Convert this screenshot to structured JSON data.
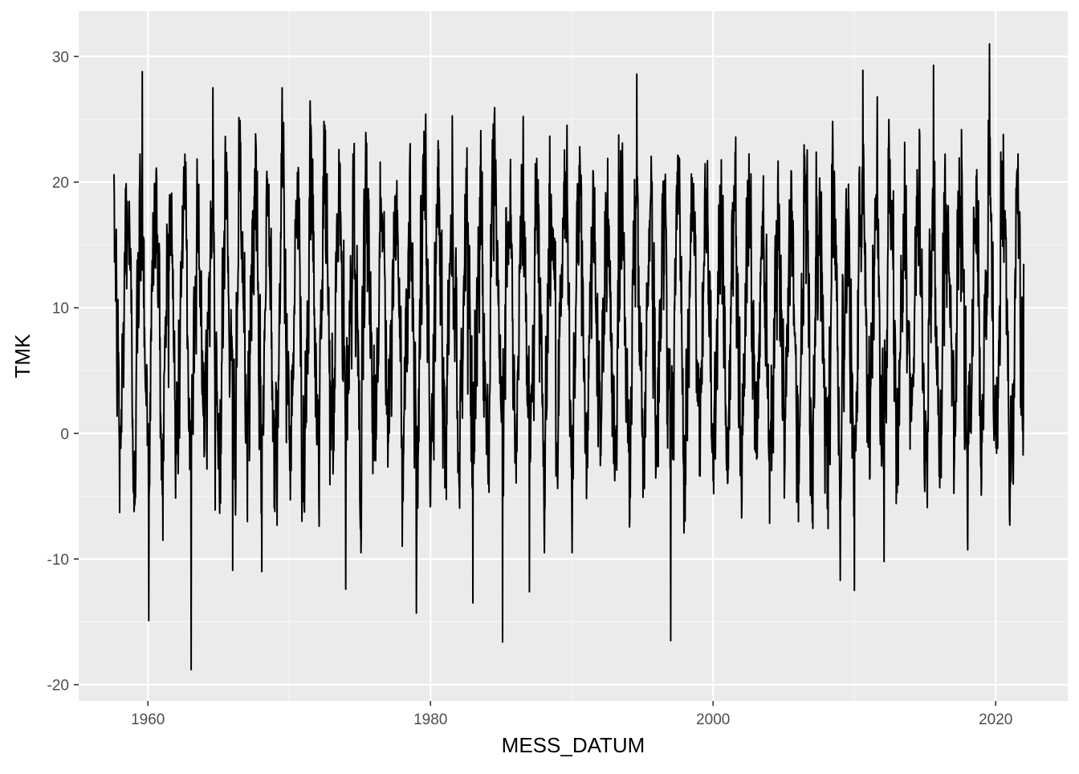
{
  "chart_data": {
    "type": "line",
    "xlabel": "MESS_DATUM",
    "ylabel": "TMK",
    "xlim": [
      1955.1,
      2025.1
    ],
    "ylim": [
      -21.3,
      33.6
    ],
    "x_ticks": [
      1960,
      1980,
      2000,
      2020
    ],
    "x_tick_labels": [
      "1960",
      "1980",
      "2000",
      "2020"
    ],
    "y_ticks": [
      -20,
      -10,
      0,
      10,
      20,
      30
    ],
    "y_tick_labels": [
      "-20",
      "-10",
      "0",
      "10",
      "20",
      "30"
    ],
    "grid": true,
    "series": [
      {
        "x_start": 1957.58,
        "x_end": 2021.99,
        "x_step_years": 0.02,
        "annual_cycle": {
          "mean": 9.0,
          "amplitude": 9.2,
          "noise_sd": 3.2
        },
        "extremes": [
          {
            "x": 1957.6,
            "y": 20.6
          },
          {
            "x": 1958.0,
            "y": -6.3
          },
          {
            "x": 1959.6,
            "y": 28.8
          },
          {
            "x": 1960.05,
            "y": -14.9
          },
          {
            "x": 1963.05,
            "y": -18.8
          },
          {
            "x": 1964.6,
            "y": 27.5
          },
          {
            "x": 1966.0,
            "y": -10.9
          },
          {
            "x": 1968.05,
            "y": -11.0
          },
          {
            "x": 1974.0,
            "y": -12.4
          },
          {
            "x": 1979.0,
            "y": -14.3
          },
          {
            "x": 1983.0,
            "y": -13.5
          },
          {
            "x": 1985.1,
            "y": -16.6
          },
          {
            "x": 1987.0,
            "y": -12.6
          },
          {
            "x": 1994.6,
            "y": 28.6
          },
          {
            "x": 1997.0,
            "y": -16.5
          },
          {
            "x": 2009.0,
            "y": -11.7
          },
          {
            "x": 2010.0,
            "y": -12.5
          },
          {
            "x": 2010.6,
            "y": 28.9
          },
          {
            "x": 2012.1,
            "y": -10.2
          },
          {
            "x": 2015.6,
            "y": 29.3
          },
          {
            "x": 2019.55,
            "y": 31.0
          },
          {
            "x": 2021.0,
            "y": -7.3
          },
          {
            "x": 2021.99,
            "y": 13.5
          }
        ]
      }
    ]
  },
  "colors": {
    "panel_background": "#ebebeb",
    "grid_major": "#ffffff",
    "grid_minor": "#f5f5f5",
    "line": "#000000",
    "tick_text": "#4d4d4d",
    "axis_title": "#000000"
  }
}
